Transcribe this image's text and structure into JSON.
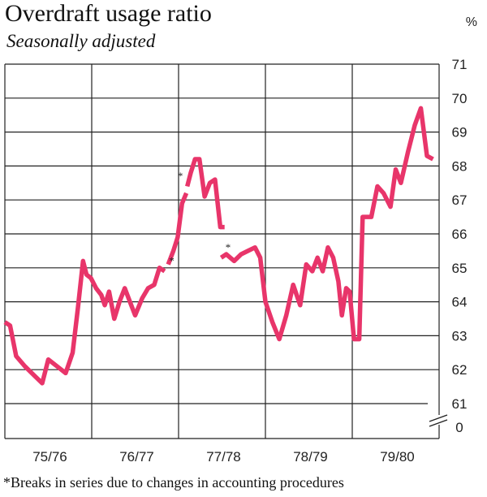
{
  "title": "Overdraft usage ratio",
  "subtitle": "Seasonally adjusted",
  "footnote": "*Breaks in series due to changes in accounting procedures",
  "chart_data": {
    "type": "line",
    "unit": "%",
    "line_color": "#e8356a",
    "x_categories": [
      "75/76",
      "76/77",
      "77/78",
      "78/79",
      "79/80"
    ],
    "xlim": [
      0,
      4.93
    ],
    "ylim": [
      61,
      71
    ],
    "y_ticks": [
      61,
      62,
      63,
      64,
      65,
      66,
      67,
      68,
      69,
      70,
      71
    ],
    "y_axis_break": true,
    "y_zero_label": "0",
    "footnote_marker": "*",
    "break_markers": [
      {
        "x": 2.02,
        "y": 67.6
      },
      {
        "x": 1.92,
        "y": 65.1
      },
      {
        "x": 2.57,
        "y": 65.5
      }
    ],
    "series": [
      {
        "name": "Overdraft usage ratio",
        "segments": [
          [
            [
              0.0,
              63.4
            ],
            [
              0.06,
              63.3
            ],
            [
              0.13,
              62.4
            ],
            [
              0.23,
              62.1
            ],
            [
              0.35,
              61.8
            ],
            [
              0.43,
              61.6
            ],
            [
              0.5,
              62.3
            ],
            [
              0.6,
              62.1
            ],
            [
              0.7,
              61.9
            ],
            [
              0.78,
              62.5
            ],
            [
              0.84,
              63.8
            ],
            [
              0.9,
              65.2
            ],
            [
              0.94,
              64.8
            ],
            [
              0.99,
              64.7
            ],
            [
              1.05,
              64.4
            ],
            [
              1.11,
              64.2
            ],
            [
              1.15,
              63.9
            ],
            [
              1.2,
              64.3
            ],
            [
              1.26,
              63.5
            ],
            [
              1.32,
              64.0
            ],
            [
              1.38,
              64.4
            ],
            [
              1.44,
              64.0
            ],
            [
              1.5,
              63.6
            ],
            [
              1.58,
              64.1
            ],
            [
              1.65,
              64.4
            ],
            [
              1.72,
              64.5
            ],
            [
              1.78,
              65.0
            ],
            [
              1.84,
              64.9
            ]
          ],
          [
            [
              1.88,
              65.1
            ],
            [
              1.94,
              65.5
            ],
            [
              1.99,
              65.9
            ],
            [
              2.04,
              66.9
            ],
            [
              2.09,
              67.2
            ]
          ],
          [
            [
              2.1,
              67.4
            ],
            [
              2.14,
              67.8
            ],
            [
              2.19,
              68.2
            ],
            [
              2.24,
              68.2
            ],
            [
              2.3,
              67.1
            ],
            [
              2.36,
              67.5
            ],
            [
              2.42,
              67.6
            ],
            [
              2.48,
              66.2
            ],
            [
              2.53,
              66.2
            ]
          ],
          [
            [
              2.49,
              65.3
            ],
            [
              2.55,
              65.4
            ],
            [
              2.64,
              65.2
            ],
            [
              2.72,
              65.4
            ],
            [
              2.8,
              65.5
            ],
            [
              2.88,
              65.6
            ],
            [
              2.94,
              65.3
            ],
            [
              3.0,
              64.0
            ],
            [
              3.08,
              63.4
            ],
            [
              3.16,
              62.9
            ],
            [
              3.24,
              63.6
            ],
            [
              3.32,
              64.5
            ],
            [
              3.4,
              63.9
            ],
            [
              3.47,
              65.1
            ],
            [
              3.54,
              64.9
            ],
            [
              3.6,
              65.3
            ],
            [
              3.66,
              64.9
            ],
            [
              3.72,
              65.6
            ],
            [
              3.78,
              65.3
            ],
            [
              3.84,
              64.6
            ],
            [
              3.88,
              63.6
            ],
            [
              3.93,
              64.4
            ],
            [
              3.97,
              64.3
            ],
            [
              4.02,
              62.9
            ],
            [
              4.08,
              62.9
            ],
            [
              4.12,
              66.5
            ],
            [
              4.22,
              66.5
            ],
            [
              4.29,
              67.4
            ],
            [
              4.36,
              67.2
            ],
            [
              4.44,
              66.8
            ],
            [
              4.5,
              67.9
            ],
            [
              4.56,
              67.5
            ],
            [
              4.64,
              68.4
            ],
            [
              4.72,
              69.2
            ],
            [
              4.79,
              69.7
            ],
            [
              4.86,
              68.3
            ],
            [
              4.93,
              68.2
            ]
          ]
        ]
      }
    ]
  }
}
